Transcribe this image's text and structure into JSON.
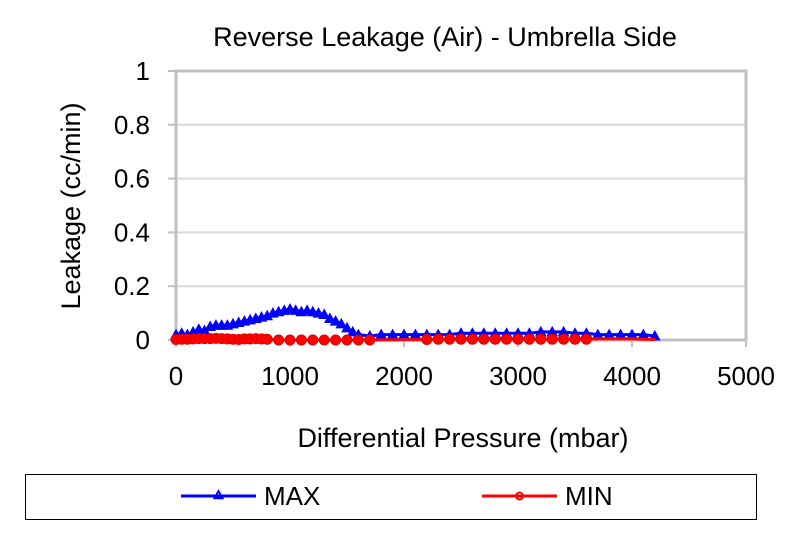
{
  "chart_data": {
    "type": "line",
    "title": "Reverse Leakage (Air) - Umbrella Side",
    "xlabel": "Differential Pressure (mbar)",
    "ylabel": "Leakage (cc/min)",
    "xlim": [
      0,
      5000
    ],
    "ylim": [
      0,
      1
    ],
    "xticks": [
      0,
      1000,
      2000,
      3000,
      4000,
      5000
    ],
    "xtick_labels": [
      "0",
      "1000",
      "2000",
      "3000",
      "4000",
      "5000"
    ],
    "yticks": [
      0,
      0.2,
      0.4,
      0.6,
      0.8,
      1
    ],
    "ytick_labels": [
      "0",
      "0.2",
      "0.4",
      "0.6",
      "0.8",
      "1"
    ],
    "grid": "horizontal",
    "legend_position": "bottom",
    "series": [
      {
        "name": "MAX",
        "color": "#0000ff",
        "marker": "triangle",
        "x": [
          0,
          50,
          100,
          150,
          200,
          250,
          300,
          350,
          400,
          450,
          500,
          550,
          600,
          650,
          700,
          750,
          800,
          850,
          900,
          950,
          1000,
          1050,
          1100,
          1150,
          1200,
          1250,
          1300,
          1350,
          1400,
          1450,
          1500,
          1550,
          1600,
          1700,
          1800,
          1900,
          2000,
          2100,
          2200,
          2300,
          2400,
          2500,
          2600,
          2700,
          2800,
          2900,
          3000,
          3100,
          3200,
          3300,
          3400,
          3500,
          3600,
          3700,
          3800,
          3900,
          4000,
          4100,
          4200
        ],
        "y": [
          0.02,
          0.025,
          0.02,
          0.03,
          0.04,
          0.035,
          0.05,
          0.055,
          0.055,
          0.055,
          0.06,
          0.065,
          0.07,
          0.075,
          0.08,
          0.085,
          0.09,
          0.1,
          0.105,
          0.11,
          0.115,
          0.11,
          0.105,
          0.11,
          0.105,
          0.1,
          0.095,
          0.08,
          0.07,
          0.06,
          0.045,
          0.03,
          0.02,
          0.015,
          0.02,
          0.02,
          0.02,
          0.02,
          0.02,
          0.02,
          0.02,
          0.025,
          0.025,
          0.025,
          0.025,
          0.025,
          0.025,
          0.025,
          0.03,
          0.03,
          0.03,
          0.025,
          0.025,
          0.02,
          0.02,
          0.02,
          0.02,
          0.02,
          0.015
        ]
      },
      {
        "name": "MIN",
        "color": "#ff0000",
        "marker": "circle",
        "x": [
          0,
          50,
          100,
          150,
          200,
          250,
          300,
          350,
          400,
          450,
          500,
          550,
          600,
          650,
          700,
          750,
          800,
          900,
          1000,
          1100,
          1200,
          1300,
          1400,
          1500,
          1600,
          1700,
          2200,
          2300,
          2400,
          2500,
          2600,
          2700,
          2800,
          2900,
          3000,
          3100,
          3200,
          3300,
          3400,
          3500,
          3600,
          3700,
          3800,
          3900,
          4000,
          4100,
          4200
        ],
        "y": [
          0.002,
          0.003,
          0.003,
          0.004,
          0.005,
          0.005,
          0.005,
          0.006,
          0.005,
          0.004,
          0.003,
          0.002,
          0.004,
          0.004,
          0.005,
          0.004,
          0.003,
          0.0,
          0.0,
          0.0,
          0.0,
          0.0,
          0.0,
          0.0,
          0.0,
          0.0,
          0.002,
          0.003,
          0.003,
          0.003,
          0.003,
          0.003,
          0.003,
          0.003,
          0.003,
          0.003,
          0.003,
          0.003,
          0.003,
          0.003,
          0.003,
          0.004,
          0.004,
          0.004,
          0.004,
          0.003,
          0.002
        ],
        "marker_x_max": 3600
      }
    ]
  }
}
